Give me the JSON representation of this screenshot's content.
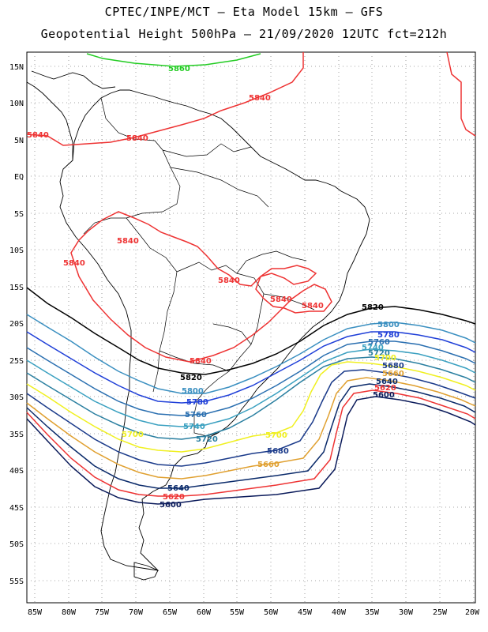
{
  "header": {
    "line1": "CPTEC/INPE/MCT –  Eta Model 15km – GFS",
    "line2": "Geopotential Height 500hPa – 21/09/2020 12UTC fct=212h"
  },
  "axes": {
    "lat_labels": [
      "15N",
      "10N",
      "5N",
      "EQ",
      "5S",
      "10S",
      "15S",
      "20S",
      "25S",
      "30S",
      "35S",
      "40S",
      "45S",
      "50S",
      "55S"
    ],
    "lon_labels": [
      "85W",
      "80W",
      "75W",
      "70W",
      "65W",
      "60W",
      "55W",
      "50W",
      "45W",
      "40W",
      "35W",
      "30W",
      "25W",
      "20W"
    ]
  },
  "contours": [
    {
      "level": "5860",
      "color": "#22cc22"
    },
    {
      "level": "5840",
      "color": "#ee3333"
    },
    {
      "level": "5820",
      "color": "#000000"
    },
    {
      "level": "5800",
      "color": "#3a8fc0"
    },
    {
      "level": "5780",
      "color": "#1f3fd8"
    },
    {
      "level": "5760",
      "color": "#2a6fb0"
    },
    {
      "level": "5740",
      "color": "#3aa0c0"
    },
    {
      "level": "5720",
      "color": "#2a7fa0"
    },
    {
      "level": "5700",
      "color": "#f0f020"
    },
    {
      "level": "5680",
      "color": "#1a3a8a"
    },
    {
      "level": "5660",
      "color": "#e0a030"
    },
    {
      "level": "5640",
      "color": "#0a2a6a"
    },
    {
      "level": "5620",
      "color": "#ee3333"
    },
    {
      "level": "5600",
      "color": "#0a1a5a"
    }
  ]
}
